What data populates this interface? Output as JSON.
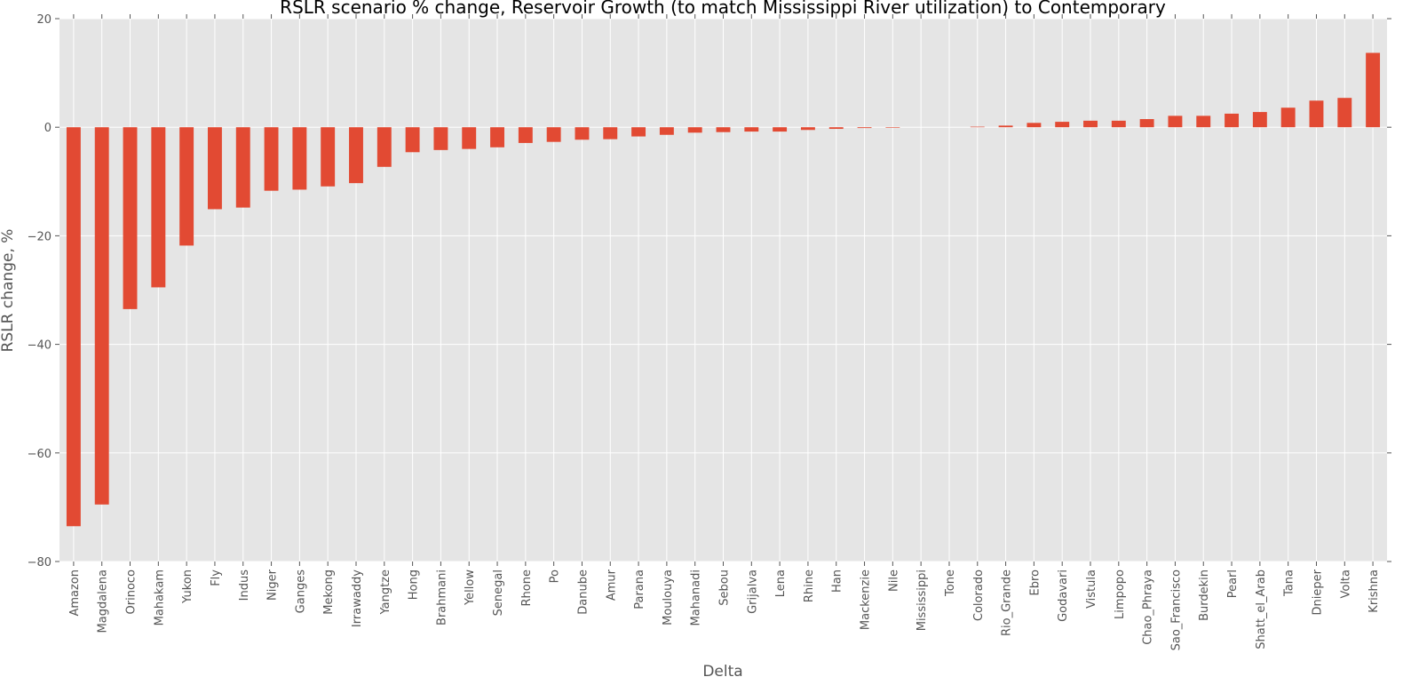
{
  "chart_data": {
    "type": "bar",
    "title": "RSLR scenario % change, Reservoir Growth (to match Mississippi River utilization) to Contemporary",
    "xlabel": "Delta",
    "ylabel": "RSLR change, %",
    "ylim": [
      -80,
      20
    ],
    "yticks": [
      -80,
      -60,
      -40,
      -20,
      0,
      20
    ],
    "ytick_labels": [
      "−80",
      "−60",
      "−40",
      "−20",
      "0",
      "20"
    ],
    "grid": true,
    "legend": "none",
    "bar_color": "#E24A33",
    "background_color": "#E5E5E5",
    "grid_color": "#FFFFFF",
    "categories": [
      "Amazon",
      "Magdalena",
      "Orinoco",
      "Mahakam",
      "Yukon",
      "Fly",
      "Indus",
      "Niger",
      "Ganges",
      "Mekong",
      "Irrawaddy",
      "Yangtze",
      "Hong",
      "Brahmani",
      "Yellow",
      "Senegal",
      "Rhone",
      "Po",
      "Danube",
      "Amur",
      "Parana",
      "Moulouya",
      "Mahanadi",
      "Sebou",
      "Grijalva",
      "Lena",
      "Rhine",
      "Han",
      "Mackenzie",
      "Nile",
      "Mississippi",
      "Tone",
      "Colorado",
      "Rio_Grande",
      "Ebro",
      "Godavari",
      "Vistula",
      "Limpopo",
      "Chao_Phraya",
      "Sao_Francisco",
      "Burdekin",
      "Pearl",
      "Shatt_el_Arab",
      "Tana",
      "Dnieper",
      "Volta",
      "Krishna"
    ],
    "values": [
      -73.5,
      -69.5,
      -33.5,
      -29.5,
      -21.8,
      -15.1,
      -14.8,
      -11.7,
      -11.5,
      -10.9,
      -10.3,
      -7.3,
      -4.6,
      -4.2,
      -4.0,
      -3.7,
      -2.9,
      -2.7,
      -2.3,
      -2.2,
      -1.7,
      -1.4,
      -1.0,
      -0.9,
      -0.8,
      -0.8,
      -0.5,
      -0.3,
      -0.15,
      -0.1,
      0,
      0,
      0.1,
      0.3,
      0.8,
      1.0,
      1.2,
      1.2,
      1.5,
      2.1,
      2.1,
      2.5,
      2.8,
      3.6,
      4.9,
      5.4,
      13.7
    ]
  }
}
